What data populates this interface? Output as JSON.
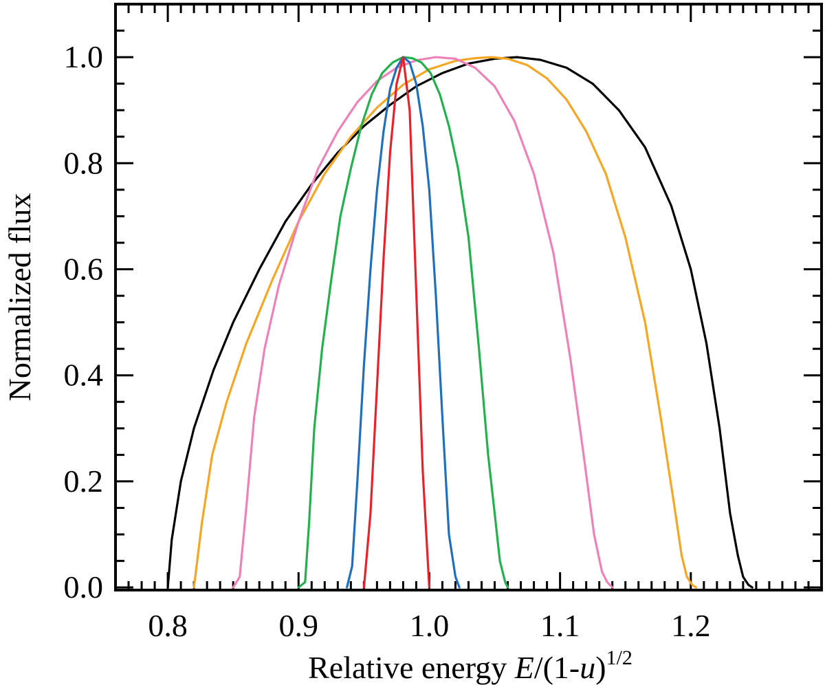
{
  "chart_data": {
    "type": "line",
    "title": "",
    "xlabel_parts": {
      "prefix": "Relative energy ",
      "var_e": "E",
      "mid1": "/(1-",
      "var_u": "u",
      "mid2": ")",
      "exponent": "1/2"
    },
    "ylabel": "Normalized flux",
    "xlim": [
      0.76,
      1.3
    ],
    "ylim": [
      -0.005,
      1.1
    ],
    "x_ticks": [
      0.8,
      0.9,
      1.0,
      1.1,
      1.2
    ],
    "x_tick_labels": [
      "0.8",
      "0.9",
      "1.0",
      "1.1",
      "1.2"
    ],
    "x_minor_step": 0.01,
    "y_ticks": [
      0.0,
      0.2,
      0.4,
      0.6,
      0.8,
      1.0
    ],
    "y_tick_labels": [
      "0.0",
      "0.2",
      "0.4",
      "0.6",
      "0.8",
      "1.0"
    ],
    "y_minor_step": 0.05,
    "grid": false,
    "series": [
      {
        "color": "#000000",
        "x": [
          0.8,
          0.803,
          0.81,
          0.82,
          0.835,
          0.85,
          0.87,
          0.89,
          0.91,
          0.93,
          0.95,
          0.97,
          0.99,
          1.01,
          1.03,
          1.05,
          1.067,
          1.085,
          1.105,
          1.125,
          1.145,
          1.165,
          1.185,
          1.2,
          1.212,
          1.222,
          1.23,
          1.236,
          1.24,
          1.244,
          1.247
        ],
        "y": [
          0.0,
          0.09,
          0.2,
          0.3,
          0.41,
          0.5,
          0.6,
          0.69,
          0.76,
          0.82,
          0.87,
          0.91,
          0.945,
          0.97,
          0.988,
          0.997,
          1.0,
          0.995,
          0.98,
          0.95,
          0.9,
          0.83,
          0.72,
          0.6,
          0.46,
          0.3,
          0.14,
          0.06,
          0.02,
          0.005,
          0.0
        ]
      },
      {
        "color": "#f5a623",
        "x": [
          0.82,
          0.826,
          0.834,
          0.845,
          0.86,
          0.88,
          0.9,
          0.92,
          0.94,
          0.96,
          0.98,
          1.0,
          1.02,
          1.035,
          1.047,
          1.06,
          1.075,
          1.09,
          1.105,
          1.12,
          1.135,
          1.15,
          1.165,
          1.177,
          1.187,
          1.193,
          1.197,
          1.201,
          1.204
        ],
        "y": [
          0.0,
          0.12,
          0.25,
          0.35,
          0.46,
          0.58,
          0.69,
          0.78,
          0.85,
          0.905,
          0.948,
          0.977,
          0.993,
          0.998,
          1.0,
          0.997,
          0.985,
          0.96,
          0.92,
          0.86,
          0.78,
          0.66,
          0.5,
          0.32,
          0.16,
          0.06,
          0.02,
          0.005,
          0.0
        ]
      },
      {
        "color": "#ee82b8",
        "x": [
          0.85,
          0.855,
          0.86,
          0.866,
          0.874,
          0.885,
          0.9,
          0.915,
          0.93,
          0.945,
          0.96,
          0.975,
          0.99,
          1.005,
          1.02,
          1.035,
          1.05,
          1.065,
          1.08,
          1.095,
          1.108,
          1.118,
          1.126,
          1.132,
          1.136,
          1.14
        ],
        "y": [
          0.0,
          0.02,
          0.15,
          0.32,
          0.45,
          0.57,
          0.69,
          0.79,
          0.86,
          0.915,
          0.955,
          0.98,
          0.994,
          1.0,
          0.997,
          0.98,
          0.945,
          0.88,
          0.78,
          0.63,
          0.43,
          0.25,
          0.1,
          0.03,
          0.01,
          0.0
        ]
      },
      {
        "color": "#22b14c",
        "x": [
          0.9,
          0.905,
          0.908,
          0.912,
          0.918,
          0.925,
          0.932,
          0.94,
          0.948,
          0.956,
          0.964,
          0.972,
          0.98,
          0.987,
          0.994,
          1.001,
          1.008,
          1.015,
          1.022,
          1.03,
          1.038,
          1.045,
          1.05,
          1.054,
          1.058,
          1.06
        ],
        "y": [
          0.0,
          0.01,
          0.12,
          0.3,
          0.45,
          0.58,
          0.7,
          0.79,
          0.87,
          0.93,
          0.97,
          0.99,
          1.0,
          0.998,
          0.99,
          0.97,
          0.93,
          0.87,
          0.79,
          0.66,
          0.45,
          0.25,
          0.14,
          0.05,
          0.01,
          0.0
        ]
      },
      {
        "color": "#1f6fbf",
        "x": [
          0.937,
          0.941,
          0.945,
          0.95,
          0.955,
          0.96,
          0.965,
          0.97,
          0.975,
          0.98,
          0.985,
          0.99,
          0.995,
          1.0,
          1.005,
          1.01,
          1.015,
          1.02,
          1.023
        ],
        "y": [
          0.0,
          0.04,
          0.2,
          0.42,
          0.6,
          0.75,
          0.86,
          0.94,
          0.98,
          1.0,
          0.99,
          0.95,
          0.87,
          0.75,
          0.55,
          0.32,
          0.1,
          0.02,
          0.0
        ]
      },
      {
        "color": "#e8212b",
        "x": [
          0.95,
          0.955,
          0.96,
          0.965,
          0.97,
          0.975,
          0.98,
          0.985,
          0.99,
          0.995,
          1.0
        ],
        "y": [
          0.0,
          0.14,
          0.38,
          0.62,
          0.82,
          0.95,
          1.0,
          0.9,
          0.56,
          0.22,
          0.0
        ]
      }
    ]
  }
}
